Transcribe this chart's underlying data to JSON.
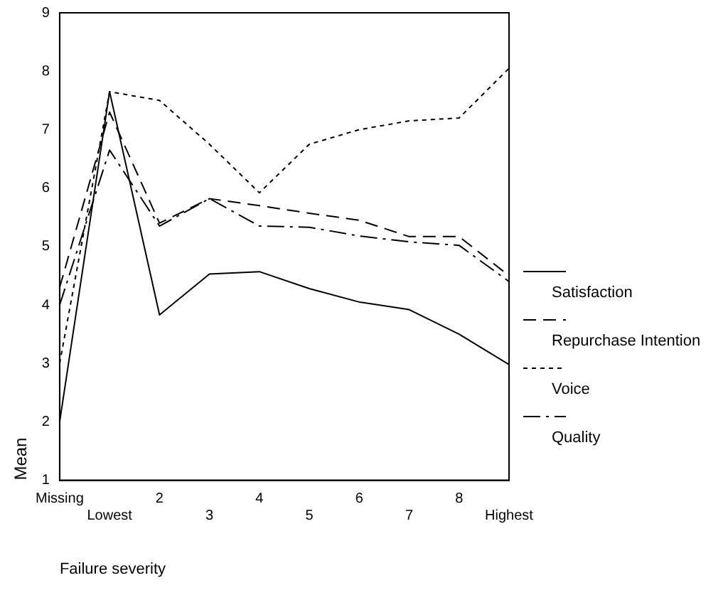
{
  "chart_data": {
    "type": "line",
    "xlabel": "Failure severity",
    "ylabel": "Mean",
    "categories": [
      "Missing",
      "Lowest",
      "2",
      "3",
      "4",
      "5",
      "6",
      "7",
      "8",
      "Highest"
    ],
    "ylim": [
      1,
      9
    ],
    "yticks": [
      1,
      2,
      3,
      4,
      5,
      6,
      7,
      8,
      9
    ],
    "grid": false,
    "legend": "right",
    "marker": "none",
    "series": [
      {
        "name": "Satisfaction",
        "color": "#000000",
        "line_style": "solid",
        "values": [
          2.0,
          7.65,
          3.83,
          4.53,
          4.57,
          4.28,
          4.05,
          3.92,
          3.5,
          2.98
        ]
      },
      {
        "name": "Repurchase Intention",
        "color": "#000000",
        "line_style": "dashed",
        "values": [
          4.3,
          7.3,
          5.4,
          5.82,
          5.7,
          5.57,
          5.45,
          5.17,
          5.17,
          4.5
        ]
      },
      {
        "name": "Voice",
        "color": "#000000",
        "line_style": "dotted",
        "values": [
          3.0,
          7.65,
          7.5,
          6.75,
          5.92,
          6.75,
          7.0,
          7.15,
          7.2,
          8.05
        ]
      },
      {
        "name": "Quality",
        "color": "#000000",
        "line_style": "dashdot",
        "values": [
          4.0,
          6.65,
          5.35,
          5.82,
          5.35,
          5.33,
          5.18,
          5.08,
          5.02,
          4.4
        ]
      }
    ]
  }
}
